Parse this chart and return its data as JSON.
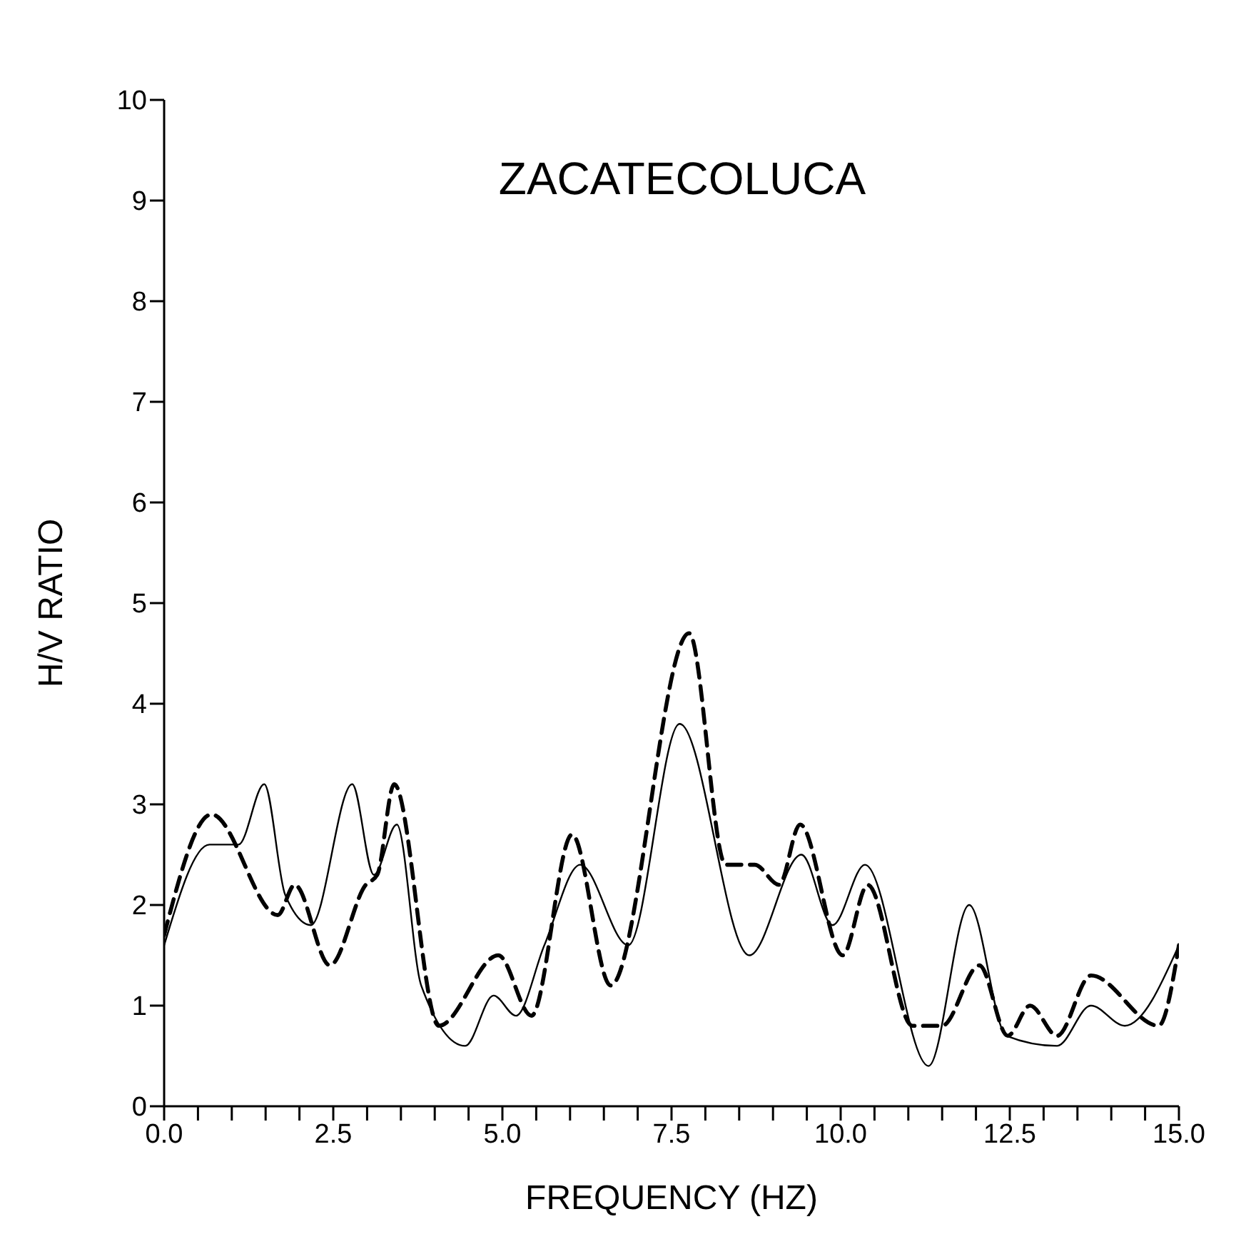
{
  "chart_data": {
    "type": "line",
    "title": "ZACATECOLUCA",
    "xlabel": "FREQUENCY (HZ)",
    "ylabel": "H/V RATIO",
    "xlim": [
      0,
      15
    ],
    "ylim": [
      0,
      10
    ],
    "xticks": [
      {
        "value": 0,
        "label": "0.0"
      },
      {
        "value": 0.5,
        "label": null
      },
      {
        "value": 1,
        "label": null
      },
      {
        "value": 1.5,
        "label": null
      },
      {
        "value": 2,
        "label": null
      },
      {
        "value": 2.5,
        "label": "2.5"
      },
      {
        "value": 3,
        "label": null
      },
      {
        "value": 3.5,
        "label": null
      },
      {
        "value": 4,
        "label": null
      },
      {
        "value": 4.5,
        "label": null
      },
      {
        "value": 5,
        "label": "5.0"
      },
      {
        "value": 5.5,
        "label": null
      },
      {
        "value": 6,
        "label": null
      },
      {
        "value": 6.5,
        "label": null
      },
      {
        "value": 7,
        "label": null
      },
      {
        "value": 7.5,
        "label": "7.5"
      },
      {
        "value": 8,
        "label": null
      },
      {
        "value": 8.5,
        "label": null
      },
      {
        "value": 9,
        "label": null
      },
      {
        "value": 9.5,
        "label": null
      },
      {
        "value": 10,
        "label": "10.0"
      },
      {
        "value": 10.5,
        "label": null
      },
      {
        "value": 11,
        "label": null
      },
      {
        "value": 11.5,
        "label": null
      },
      {
        "value": 12,
        "label": null
      },
      {
        "value": 12.5,
        "label": "12.5"
      },
      {
        "value": 13,
        "label": null
      },
      {
        "value": 13.5,
        "label": null
      },
      {
        "value": 14,
        "label": null
      },
      {
        "value": 14.5,
        "label": null
      },
      {
        "value": 15,
        "label": "15.0"
      }
    ],
    "yticks": [
      0,
      1,
      2,
      3,
      4,
      5,
      6,
      7,
      8,
      9,
      10
    ],
    "marker": "none",
    "series": [
      {
        "color": "#000000",
        "line_style": "solid",
        "x": [
          0,
          0.67,
          1.1,
          1.48,
          1.79,
          2.17,
          2.78,
          3.1,
          3.44,
          3.8,
          4.45,
          4.87,
          5.2,
          5.62,
          6.15,
          6.86,
          7.62,
          8.65,
          9.42,
          9.88,
          10.36,
          11.3,
          11.9,
          12.45,
          13.2,
          13.7,
          14.2,
          15
        ],
        "values": [
          1.6,
          2.6,
          2.6,
          3.2,
          2.1,
          1.8,
          3.2,
          2.3,
          2.8,
          1.2,
          0.6,
          1.1,
          0.9,
          1.6,
          2.4,
          1.6,
          3.8,
          1.5,
          2.5,
          1.8,
          2.4,
          0.4,
          2,
          0.7,
          0.6,
          1,
          0.8,
          1.6
        ]
      },
      {
        "color": "#000000",
        "line_style": "dashed",
        "x": [
          0,
          0.7,
          1.68,
          1.93,
          2.45,
          2.98,
          3.15,
          3.4,
          4.06,
          4.94,
          5.43,
          6.03,
          6.6,
          7.76,
          8.3,
          8.73,
          9.09,
          9.4,
          10.03,
          10.4,
          11.06,
          11.5,
          12.05,
          12.47,
          12.8,
          13.2,
          13.7,
          14.7,
          15
        ],
        "values": [
          1.7,
          2.9,
          1.9,
          2.2,
          1.4,
          2.2,
          2.3,
          3.2,
          0.8,
          1.5,
          0.9,
          2.7,
          1.2,
          4.7,
          2.4,
          2.4,
          2.2,
          2.8,
          1.5,
          2.2,
          0.8,
          0.8,
          1.4,
          0.7,
          1,
          0.7,
          1.3,
          0.8,
          1.6
        ]
      }
    ]
  }
}
